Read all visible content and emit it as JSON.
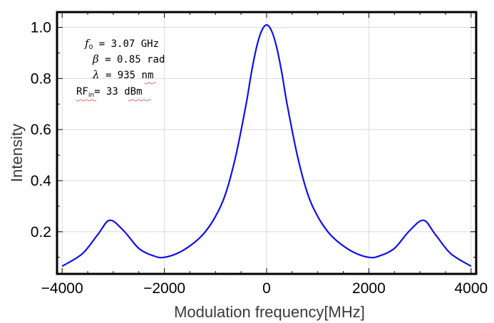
{
  "chart_data": {
    "type": "line",
    "xlabel": "Modulation frequency[MHz]",
    "ylabel": "Intensity",
    "xlim": [
      -4100,
      4100
    ],
    "ylim": [
      0.035,
      1.06
    ],
    "xticks": [
      -4000,
      -2000,
      0,
      2000,
      4000
    ],
    "xtick_labels": [
      "−4000",
      "−2000",
      "0",
      "2000",
      "4000"
    ],
    "yticks": [
      0.2,
      0.4,
      0.6,
      0.8,
      1.0
    ],
    "ytick_labels": [
      "0.2",
      "0.4",
      "0.6",
      "0.8",
      "1.0"
    ],
    "grid": true,
    "line_color": "#1010e8",
    "series": [
      {
        "x": [
          -4000,
          -3600,
          -3300,
          -3070,
          -2800,
          -2500,
          -2200,
          -2000,
          -1700,
          -1400,
          -1200,
          -1000,
          -800,
          -600,
          -400,
          -300,
          -200,
          -100,
          0,
          100,
          200,
          300,
          400,
          600,
          800,
          1000,
          1200,
          1400,
          1700,
          2000,
          2200,
          2500,
          2800,
          3070,
          3300,
          3600,
          4000
        ],
        "y": [
          0.065,
          0.115,
          0.19,
          0.245,
          0.205,
          0.135,
          0.105,
          0.1,
          0.12,
          0.16,
          0.2,
          0.26,
          0.35,
          0.5,
          0.7,
          0.82,
          0.92,
          0.985,
          1.01,
          0.985,
          0.92,
          0.82,
          0.7,
          0.5,
          0.35,
          0.26,
          0.2,
          0.16,
          0.12,
          0.1,
          0.105,
          0.135,
          0.205,
          0.245,
          0.19,
          0.115,
          0.065
        ]
      }
    ]
  },
  "annotations": {
    "f0_symbol": "f",
    "f0_sub": "0",
    "f0_text": " = 3.07 GHz",
    "beta_symbol": "β",
    "beta_text": " = 0.85 rad",
    "lambda_symbol": "λ",
    "lambda_text": " = 935 nm",
    "rf_symbol": "RF",
    "rf_sub": "in",
    "rf_text": "= 33 dBm"
  }
}
